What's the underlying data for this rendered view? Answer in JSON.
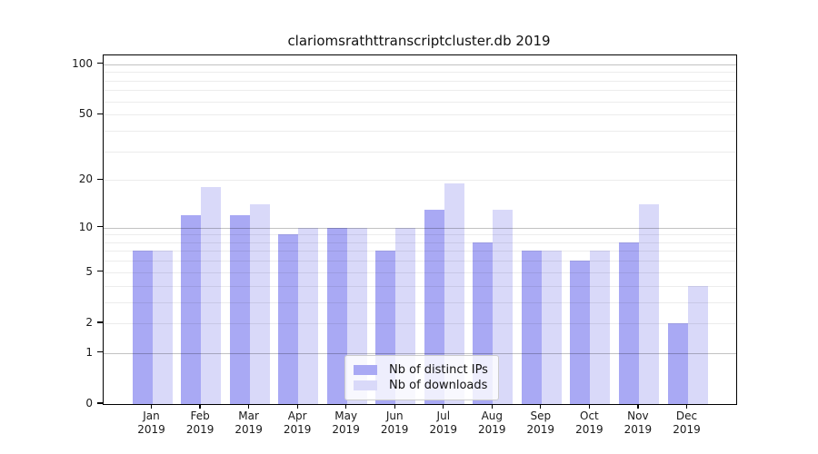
{
  "chart_data": {
    "type": "bar",
    "title": "clariomsrathttranscriptcluster.db 2019",
    "categories": [
      "Jan",
      "Feb",
      "Mar",
      "Apr",
      "May",
      "Jun",
      "Jul",
      "Aug",
      "Sep",
      "Oct",
      "Nov",
      "Dec"
    ],
    "x_sublabel": "2019",
    "series": [
      {
        "name": "Nb of distinct IPs",
        "color": "#a9a9f4",
        "values": [
          7,
          12,
          12,
          9,
          10,
          7,
          13,
          8,
          7,
          6,
          8,
          2
        ]
      },
      {
        "name": "Nb of downloads",
        "color": "#d9d9f9",
        "values": [
          7,
          18,
          14,
          10,
          10,
          10,
          19,
          13,
          7,
          7,
          14,
          4
        ]
      }
    ],
    "y_scale": "log10(1+value)",
    "ylim": [
      0,
      113
    ],
    "y_tick_labels": [
      0,
      1,
      2,
      5,
      10,
      20,
      50,
      100
    ],
    "y_gridlines_major": [
      1,
      10,
      100
    ],
    "y_gridlines_minor": [
      2,
      3,
      4,
      5,
      6,
      7,
      8,
      9,
      20,
      30,
      40,
      50,
      60,
      70,
      80,
      90
    ],
    "legend_position": "bottom-center",
    "grid": "on"
  }
}
